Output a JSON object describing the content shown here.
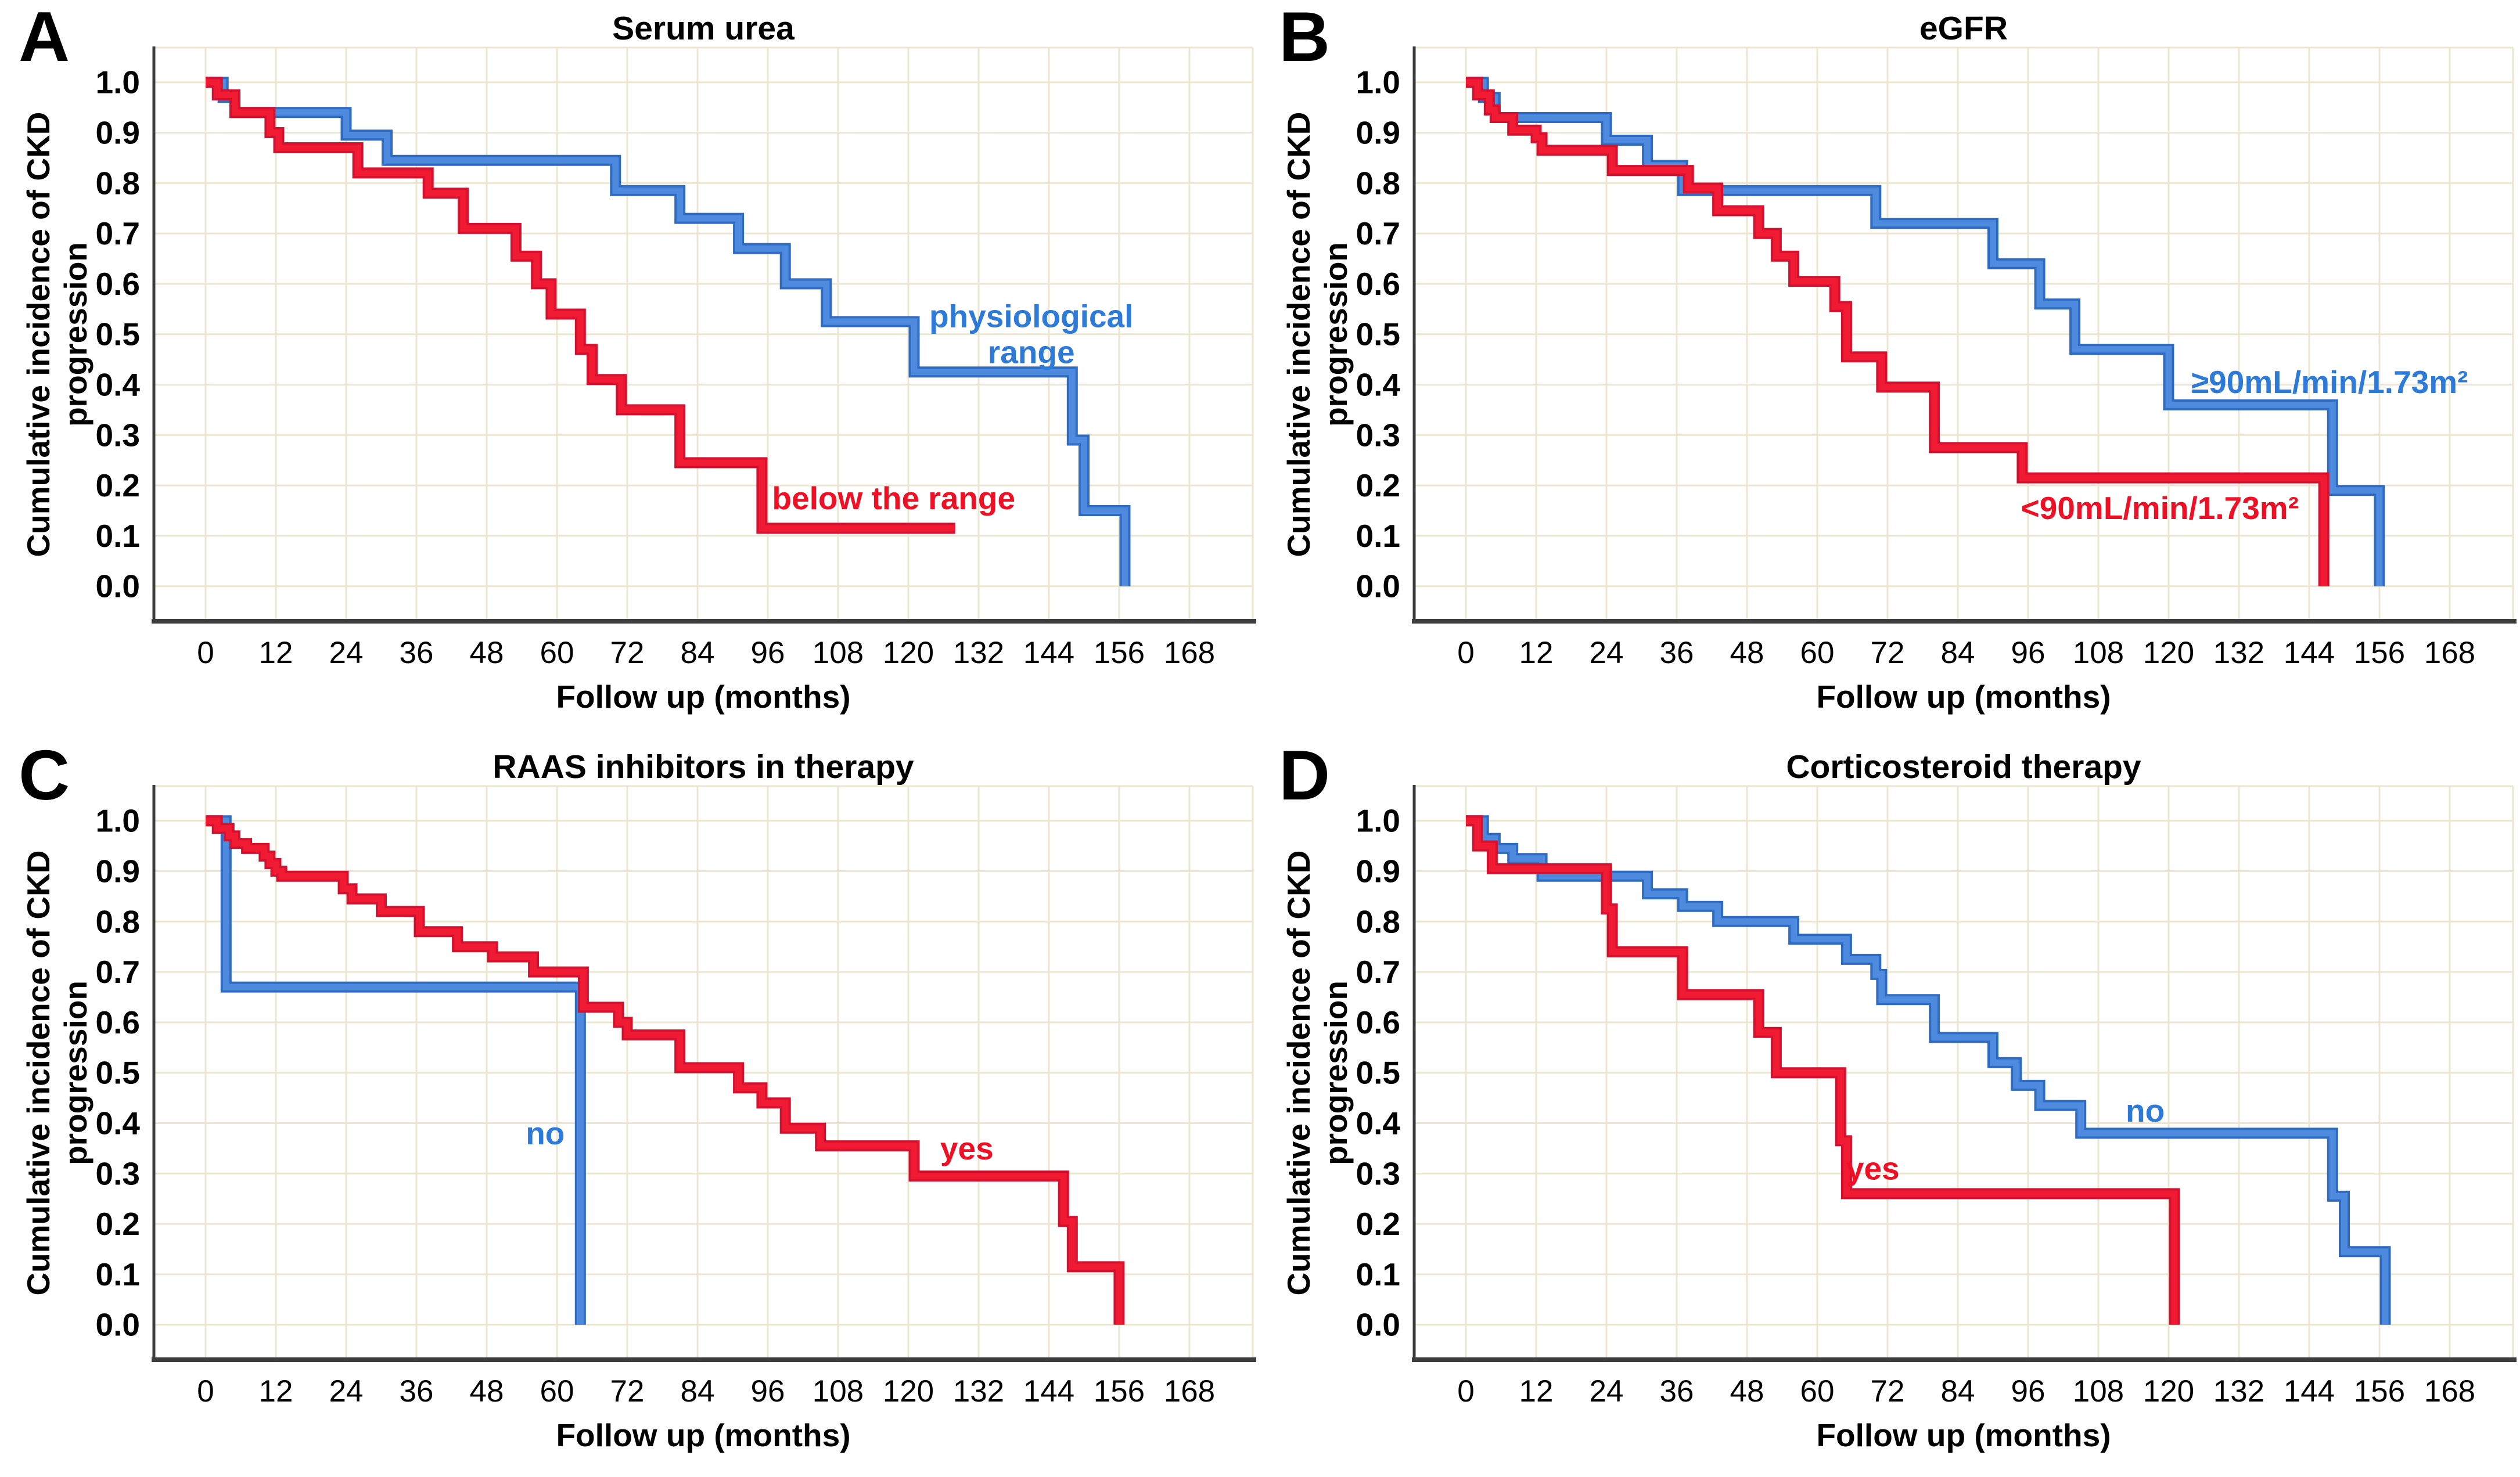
{
  "figure": {
    "background": "#ffffff",
    "grid_color": "#ece6d0",
    "axis_color": "#3d3d3d",
    "tick_text_color": "#000000",
    "blue": "#4e8ade",
    "blue_dark": "#2f6bc0",
    "blue_text": "#2e7ad9",
    "red": "#f01b33",
    "red_dark": "#d41230",
    "red_text": "#ee1025"
  },
  "chart_data": [
    {
      "panel": "A",
      "type": "line",
      "step": true,
      "title": "Serum urea",
      "xlabel": "Follow up (months)",
      "ylabel": "Cumulative incidence of CKD progression",
      "ylabel_lines": [
        "Cumulative incidence of CKD",
        "progression"
      ],
      "xticks": [
        0,
        12,
        24,
        36,
        48,
        60,
        72,
        84,
        96,
        108,
        120,
        132,
        144,
        156,
        168
      ],
      "xlim": [
        -8.8,
        178.8
      ],
      "yticks": [
        0.0,
        0.1,
        0.2,
        0.3,
        0.4,
        0.5,
        0.6,
        0.7,
        0.8,
        0.9,
        1.0
      ],
      "ylim": [
        -0.07,
        1.07
      ],
      "grid": true,
      "legend_position": "inline",
      "series": [
        {
          "name": "physiological range",
          "color_key": "blue",
          "label_lines": [
            "physiological",
            "range"
          ],
          "label_pos": {
            "x": 141,
            "y": 0.5
          },
          "steps": [
            [
              0,
              1.0
            ],
            [
              3,
              0.97
            ],
            [
              5,
              0.94
            ],
            [
              24,
              0.895
            ],
            [
              31,
              0.845
            ],
            [
              70,
              0.785
            ],
            [
              81,
              0.73
            ],
            [
              91,
              0.67
            ],
            [
              99,
              0.6
            ],
            [
              106,
              0.525
            ],
            [
              121,
              0.425
            ],
            [
              148,
              0.29
            ],
            [
              150,
              0.15
            ],
            [
              157,
              0.0
            ]
          ]
        },
        {
          "name": "below the range",
          "color_key": "red",
          "label_lines": [
            "below the range"
          ],
          "label_pos": {
            "x": 117.5,
            "y": 0.175
          },
          "steps": [
            [
              0,
              1.0
            ],
            [
              2,
              0.975
            ],
            [
              5,
              0.94
            ],
            [
              11,
              0.9
            ],
            [
              12.5,
              0.87
            ],
            [
              26,
              0.82
            ],
            [
              38,
              0.78
            ],
            [
              44,
              0.71
            ],
            [
              53,
              0.655
            ],
            [
              56.5,
              0.6
            ],
            [
              59,
              0.54
            ],
            [
              64,
              0.47
            ],
            [
              66,
              0.41
            ],
            [
              71,
              0.35
            ],
            [
              81,
              0.245
            ],
            [
              95,
              0.115
            ],
            [
              128,
              0.115
            ]
          ]
        }
      ]
    },
    {
      "panel": "B",
      "type": "line",
      "step": true,
      "title": "eGFR",
      "xlabel": "Follow up (months)",
      "ylabel": "Cumulative incidence of CKD progression",
      "ylabel_lines": [
        "Cumulative incidence of CKD",
        "progression"
      ],
      "xticks": [
        0,
        12,
        24,
        36,
        48,
        60,
        72,
        84,
        96,
        108,
        120,
        132,
        144,
        156,
        168
      ],
      "xlim": [
        -8.8,
        178.8
      ],
      "yticks": [
        0.0,
        0.1,
        0.2,
        0.3,
        0.4,
        0.5,
        0.6,
        0.7,
        0.8,
        0.9,
        1.0
      ],
      "ylim": [
        -0.07,
        1.07
      ],
      "grid": true,
      "legend_position": "inline",
      "series": [
        {
          "name": "≥90mL/min/1.73m²",
          "color_key": "blue",
          "label_lines": [
            "≥90mL/min/1.73m²"
          ],
          "label_pos": {
            "x": 147.5,
            "y": 0.405
          },
          "steps": [
            [
              0,
              1.0
            ],
            [
              3,
              0.97
            ],
            [
              5,
              0.93
            ],
            [
              24,
              0.885
            ],
            [
              31,
              0.835
            ],
            [
              37,
              0.785
            ],
            [
              70,
              0.72
            ],
            [
              90,
              0.64
            ],
            [
              98,
              0.56
            ],
            [
              104,
              0.47
            ],
            [
              120,
              0.36
            ],
            [
              148,
              0.19
            ],
            [
              156,
              0.0
            ]
          ]
        },
        {
          "name": "<90mL/min/1.73m²",
          "color_key": "red",
          "label_lines": [
            "<90mL/min/1.73m²"
          ],
          "label_pos": {
            "x": 118.5,
            "y": 0.155
          },
          "steps": [
            [
              0,
              1.0
            ],
            [
              2,
              0.975
            ],
            [
              4,
              0.945
            ],
            [
              5,
              0.93
            ],
            [
              8,
              0.905
            ],
            [
              12,
              0.89
            ],
            [
              13,
              0.865
            ],
            [
              25,
              0.825
            ],
            [
              38,
              0.79
            ],
            [
              43,
              0.745
            ],
            [
              50,
              0.7
            ],
            [
              53,
              0.655
            ],
            [
              56,
              0.605
            ],
            [
              63,
              0.555
            ],
            [
              65,
              0.455
            ],
            [
              71,
              0.395
            ],
            [
              80,
              0.275
            ],
            [
              95,
              0.215
            ],
            [
              146.5,
              0.0
            ]
          ]
        }
      ]
    },
    {
      "panel": "C",
      "type": "line",
      "step": true,
      "title": "RAAS inhibitors in therapy",
      "xlabel": "Follow up (months)",
      "ylabel": "Cumulative incidence of CKD progression",
      "ylabel_lines": [
        "Cumulative incidence of CKD",
        "progression"
      ],
      "xticks": [
        0,
        12,
        24,
        36,
        48,
        60,
        72,
        84,
        96,
        108,
        120,
        132,
        144,
        156,
        168
      ],
      "xlim": [
        -8.8,
        178.8
      ],
      "yticks": [
        0.0,
        0.1,
        0.2,
        0.3,
        0.4,
        0.5,
        0.6,
        0.7,
        0.8,
        0.9,
        1.0
      ],
      "ylim": [
        -0.07,
        1.07
      ],
      "grid": true,
      "legend_position": "inline",
      "series": [
        {
          "name": "no",
          "color_key": "blue",
          "label_lines": [
            "no"
          ],
          "label_pos": {
            "x": 58,
            "y": 0.38
          },
          "steps": [
            [
              0,
              1.0
            ],
            [
              3.5,
              0.67
            ],
            [
              64,
              0.0
            ]
          ]
        },
        {
          "name": "yes",
          "color_key": "red",
          "label_lines": [
            "yes"
          ],
          "label_pos": {
            "x": 130,
            "y": 0.35
          },
          "steps": [
            [
              0,
              1.0
            ],
            [
              2,
              0.985
            ],
            [
              4,
              0.97
            ],
            [
              5,
              0.955
            ],
            [
              7,
              0.945
            ],
            [
              10,
              0.93
            ],
            [
              11,
              0.915
            ],
            [
              12,
              0.9
            ],
            [
              13,
              0.89
            ],
            [
              23.5,
              0.865
            ],
            [
              25,
              0.845
            ],
            [
              30,
              0.82
            ],
            [
              36.5,
              0.78
            ],
            [
              43,
              0.75
            ],
            [
              49,
              0.73
            ],
            [
              56,
              0.7
            ],
            [
              64.5,
              0.63
            ],
            [
              70.5,
              0.6
            ],
            [
              72,
              0.575
            ],
            [
              81,
              0.51
            ],
            [
              91,
              0.47
            ],
            [
              95,
              0.44
            ],
            [
              99,
              0.39
            ],
            [
              105,
              0.355
            ],
            [
              121,
              0.295
            ],
            [
              146.5,
              0.205
            ],
            [
              148,
              0.115
            ],
            [
              156,
              0.0
            ]
          ]
        }
      ]
    },
    {
      "panel": "D",
      "type": "line",
      "step": true,
      "title": "Corticosteroid therapy",
      "xlabel": "Follow up (months)",
      "ylabel": "Cumulative incidence of CKD progression",
      "ylabel_lines": [
        "Cumulative incidence of CKD",
        "progression"
      ],
      "xticks": [
        0,
        12,
        24,
        36,
        48,
        60,
        72,
        84,
        96,
        108,
        120,
        132,
        144,
        156,
        168
      ],
      "xlim": [
        -8.8,
        178.8
      ],
      "yticks": [
        0.0,
        0.1,
        0.2,
        0.3,
        0.4,
        0.5,
        0.6,
        0.7,
        0.8,
        0.9,
        1.0
      ],
      "ylim": [
        -0.07,
        1.07
      ],
      "grid": true,
      "legend_position": "inline",
      "series": [
        {
          "name": "no",
          "color_key": "blue",
          "label_lines": [
            "no"
          ],
          "label_pos": {
            "x": 116,
            "y": 0.425
          },
          "steps": [
            [
              0,
              1.0
            ],
            [
              3,
              0.965
            ],
            [
              5,
              0.945
            ],
            [
              8,
              0.925
            ],
            [
              13,
              0.89
            ],
            [
              31,
              0.855
            ],
            [
              37,
              0.83
            ],
            [
              43,
              0.8
            ],
            [
              56,
              0.765
            ],
            [
              65,
              0.725
            ],
            [
              70,
              0.695
            ],
            [
              71,
              0.645
            ],
            [
              80,
              0.57
            ],
            [
              90,
              0.52
            ],
            [
              94,
              0.475
            ],
            [
              98,
              0.435
            ],
            [
              105,
              0.38
            ],
            [
              148,
              0.255
            ],
            [
              150,
              0.145
            ],
            [
              157,
              0.0
            ]
          ]
        },
        {
          "name": "yes",
          "color_key": "red",
          "label_lines": [
            "yes"
          ],
          "label_pos": {
            "x": 69.5,
            "y": 0.31
          },
          "steps": [
            [
              0,
              1.0
            ],
            [
              2,
              0.95
            ],
            [
              4.5,
              0.905
            ],
            [
              24,
              0.825
            ],
            [
              25,
              0.74
            ],
            [
              37,
              0.655
            ],
            [
              50,
              0.58
            ],
            [
              53,
              0.5
            ],
            [
              64,
              0.365
            ],
            [
              65,
              0.26
            ],
            [
              121,
              0.0
            ]
          ]
        }
      ]
    }
  ]
}
